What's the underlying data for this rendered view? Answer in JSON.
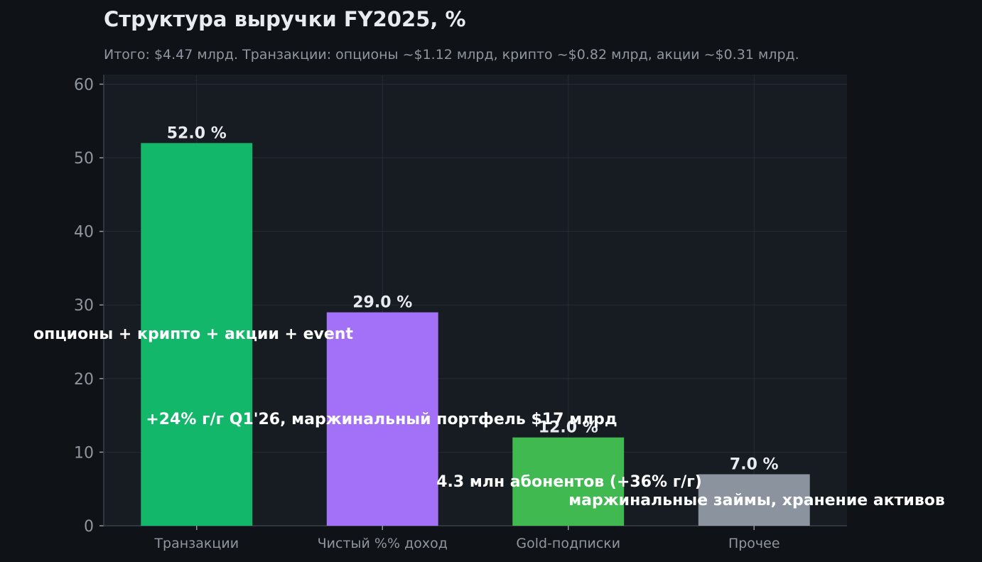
{
  "chart_data": {
    "type": "bar",
    "title": "Структура выручки FY2025, %",
    "subtitle": "Итого: $4.47 млрд. Транзакции: опционы ~$1.12 млрд, крипто ~$0.82 млрд, акции ~$0.31 млрд.",
    "xlabel": "",
    "ylabel": "",
    "categories": [
      "Транзакции",
      "Чистый %% доход",
      "Gold-подписки",
      "Прочее"
    ],
    "values": [
      52.0,
      29.0,
      12.0,
      7.0
    ],
    "value_labels": [
      "52.0 %",
      "29.0 %",
      "12.0 %",
      "7.0 %"
    ],
    "bar_colors": [
      "#12b76a",
      "#a371f7",
      "#3fb950",
      "#8b949e"
    ],
    "annotations": [
      "опционы + крипто + акции + event",
      "+24% г/г Q1'26, маржинальный портфель $17 млрд",
      "4.3 млн абонентов (+36% г/г)",
      "маржинальные займы, хранение активов"
    ],
    "ylim": [
      0,
      61.3
    ],
    "yticks": [
      0,
      10,
      20,
      30,
      40,
      50,
      60
    ],
    "grid": true,
    "legend": "none"
  },
  "colors": {
    "background": "#0f1317",
    "plot_background": "#171b22",
    "grid": "#262c35",
    "text_primary": "#e8ebef",
    "text_muted": "#8f969f"
  }
}
